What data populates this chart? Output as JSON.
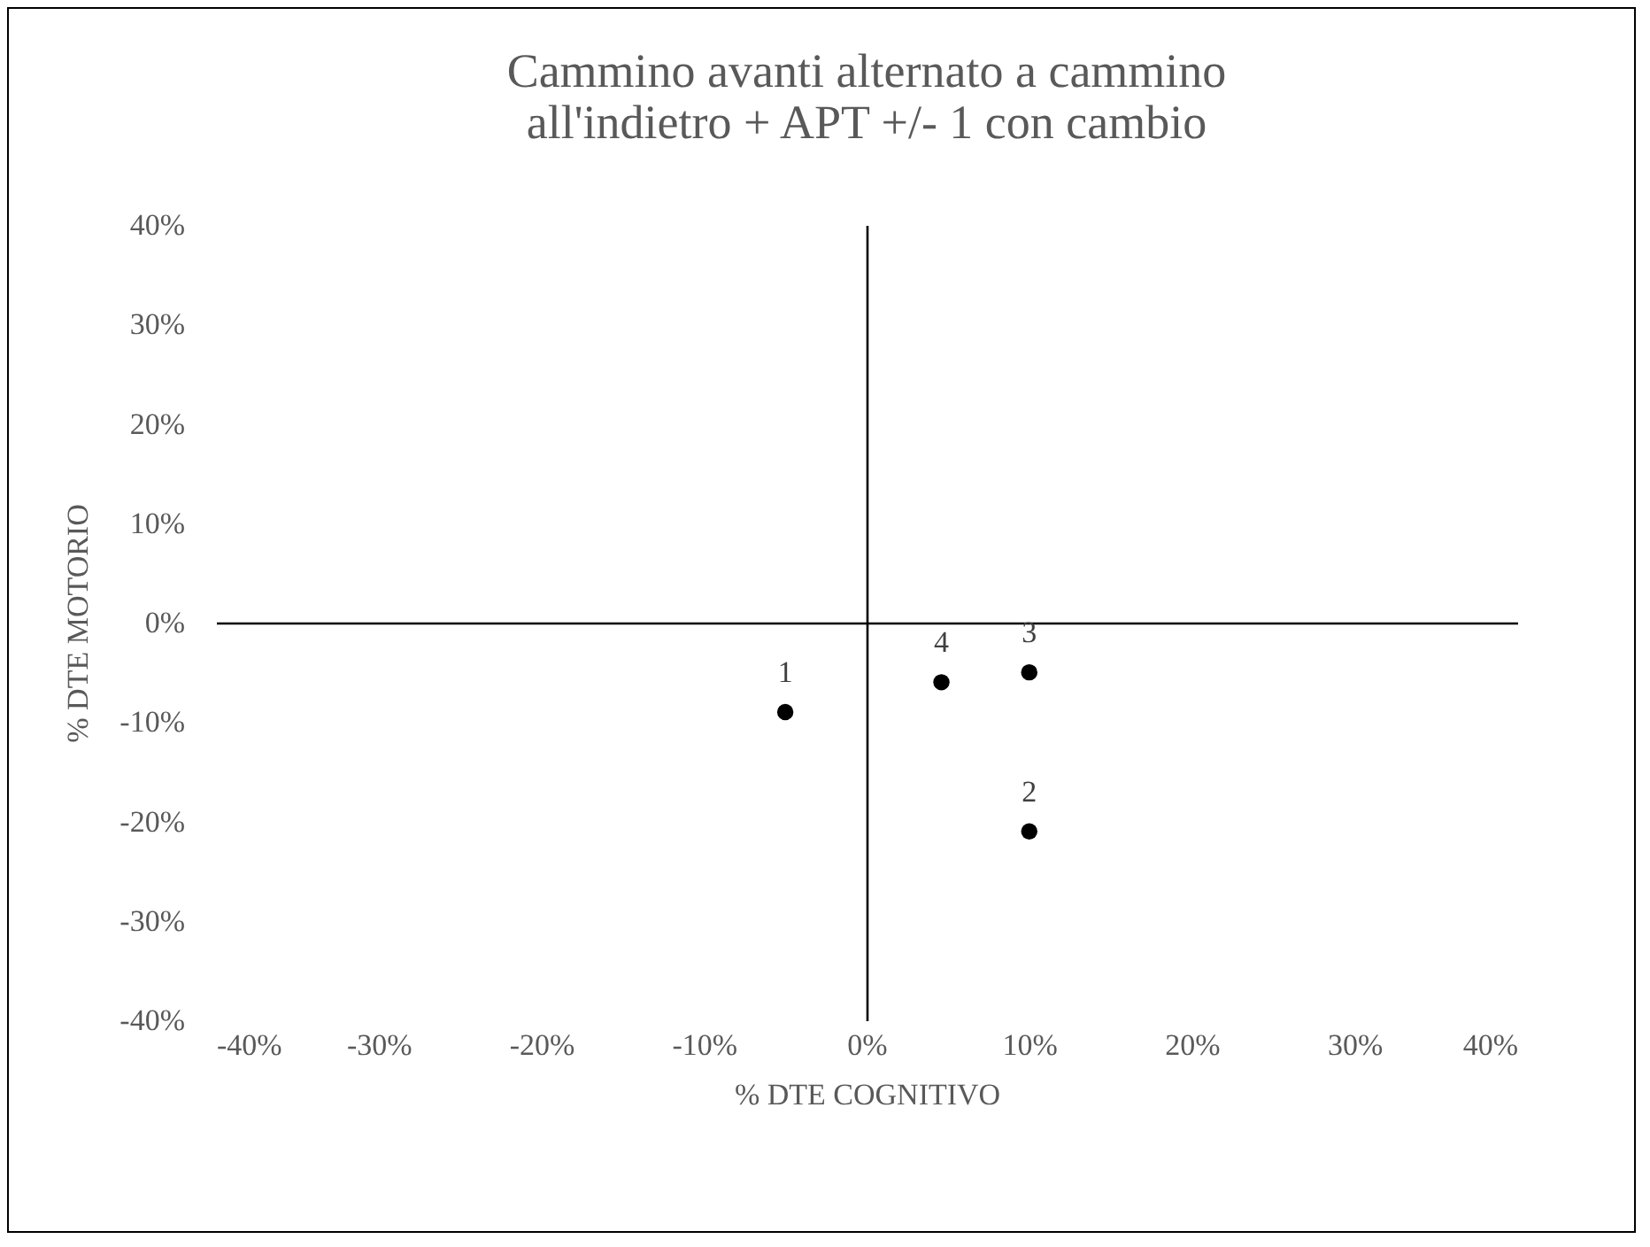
{
  "chart_data": {
    "type": "scatter",
    "title": "Cammino avanti alternato a cammino all'indietro + APT +/- 1 con cambio",
    "xlabel": "% DTE COGNITIVO",
    "ylabel": "% DTE MOTORIO",
    "series": [
      {
        "color": "#000000",
        "x": [
          -5,
          10,
          10,
          4.6
        ],
        "values": [
          -9,
          -21,
          -5,
          -6
        ]
      }
    ],
    "marker": "circle",
    "xlim": [
      -40,
      40
    ],
    "ylim": [
      -40,
      40
    ],
    "xticks": [
      {
        "value": -40,
        "label": "-40%"
      },
      {
        "value": -30,
        "label": "-30%"
      },
      {
        "value": -20,
        "label": "-20%"
      },
      {
        "value": -10,
        "label": "-10%"
      },
      {
        "value": 0,
        "label": "0%"
      },
      {
        "value": 10,
        "label": "10%"
      },
      {
        "value": 20,
        "label": "20%"
      },
      {
        "value": 30,
        "label": "30%"
      },
      {
        "value": 40,
        "label": "40%"
      }
    ],
    "yticks": [
      {
        "value": -40,
        "label": "-40%"
      },
      {
        "value": -30,
        "label": "-30%"
      },
      {
        "value": -20,
        "label": "-20%"
      },
      {
        "value": -10,
        "label": "-10%"
      },
      {
        "value": 0,
        "label": "0%"
      },
      {
        "value": 10,
        "label": "10%"
      },
      {
        "value": 20,
        "label": "20%"
      },
      {
        "value": 30,
        "label": "30%"
      },
      {
        "value": 40,
        "label": "40%"
      }
    ],
    "annotations": [
      {
        "text": "1",
        "x": -5,
        "y": -9
      },
      {
        "text": "2",
        "x": 10,
        "y": -21
      },
      {
        "text": "3",
        "x": 10,
        "y": -5
      },
      {
        "text": "4",
        "x": 4.6,
        "y": -6
      }
    ]
  }
}
